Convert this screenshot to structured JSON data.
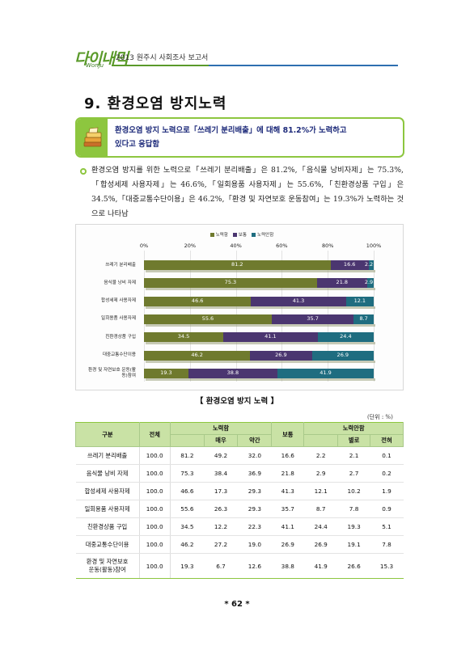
{
  "header": {
    "logo_text": "다이내믹",
    "logo_sub": "Wonju",
    "report_title": "2013 원주시 사회조사 보고서"
  },
  "section_title": "9. 환경오염 방지노력",
  "summary": {
    "line1": "환경오염 방지 노력으로「쓰레기 분리배출」에 대해 81.2%가 노력하고",
    "line2": "있다고 응답함"
  },
  "paragraph": "환경오염 방지를 위한 노력으로「쓰레기 분리배출」은 81.2%,「음식물 낭비자제」는 75.3%,「합성세제 사용자제」는 46.6%,「일회용품 사용자제」는 55.6%,「친환경상품 구입」은 34.5%,「대중교통수단이용」은 46.2%,「환경 및 자연보호 운동참여」는 19.3%가 노력하는 것으로 나타남",
  "chart_data": {
    "type": "bar",
    "orientation": "horizontal",
    "stacked": true,
    "legend_position": "top",
    "xlim": [
      0,
      100
    ],
    "x_ticks": [
      "0%",
      "20%",
      "40%",
      "60%",
      "80%",
      "100%"
    ],
    "categories": [
      "쓰레기 분리배출",
      "음식물 낭비 자제",
      "합성세제 사용자제",
      "일회용품 사용자제",
      "친환경상품 구입",
      "대중교통수단이용",
      "환경 및 자연보호 운동(활동)참여"
    ],
    "series": [
      {
        "name": "노력함",
        "color": "#6f7a2e",
        "values": [
          81.2,
          75.3,
          46.6,
          55.6,
          34.5,
          46.2,
          19.3
        ]
      },
      {
        "name": "보통",
        "color": "#4b3670",
        "values": [
          16.6,
          21.8,
          41.3,
          35.7,
          41.1,
          26.9,
          38.8
        ]
      },
      {
        "name": "노력안함",
        "color": "#1f6d80",
        "values": [
          2.2,
          2.9,
          12.1,
          8.7,
          24.4,
          26.9,
          41.9
        ]
      }
    ]
  },
  "table": {
    "caption": "【 환경오염 방지 노력 】",
    "unit": "(단위 : %)",
    "headers": {
      "category": "구분",
      "total": "전체",
      "effort": "노력함",
      "very": "매우",
      "somewhat": "약간",
      "normal": "보통",
      "no_effort": "노력안함",
      "rarely": "별로",
      "never": "전혀"
    },
    "rows": [
      {
        "name": "쓰레기 분리배출",
        "name2": "",
        "cells": [
          "100.0",
          "81.2",
          "49.2",
          "32.0",
          "16.6",
          "2.2",
          "2.1",
          "0.1"
        ]
      },
      {
        "name": "음식물 낭비 자제",
        "name2": "",
        "cells": [
          "100.0",
          "75.3",
          "38.4",
          "36.9",
          "21.8",
          "2.9",
          "2.7",
          "0.2"
        ]
      },
      {
        "name": "합성세제 사용자제",
        "name2": "",
        "cells": [
          "100.0",
          "46.6",
          "17.3",
          "29.3",
          "41.3",
          "12.1",
          "10.2",
          "1.9"
        ]
      },
      {
        "name": "일회용품 사용자제",
        "name2": "",
        "cells": [
          "100.0",
          "55.6",
          "26.3",
          "29.3",
          "35.7",
          "8.7",
          "7.8",
          "0.9"
        ]
      },
      {
        "name": "친환경상품 구입",
        "name2": "",
        "cells": [
          "100.0",
          "34.5",
          "12.2",
          "22.3",
          "41.1",
          "24.4",
          "19.3",
          "5.1"
        ]
      },
      {
        "name": "대중교통수단이용",
        "name2": "",
        "cells": [
          "100.0",
          "46.2",
          "27.2",
          "19.0",
          "26.9",
          "26.9",
          "19.1",
          "7.8"
        ]
      },
      {
        "name": "환경 및 자연보호",
        "name2": "운동(활동)참여",
        "cells": [
          "100.0",
          "19.3",
          "6.7",
          "12.6",
          "38.8",
          "41.9",
          "26.6",
          "15.3"
        ]
      }
    ]
  },
  "page_number": "* 62 *"
}
